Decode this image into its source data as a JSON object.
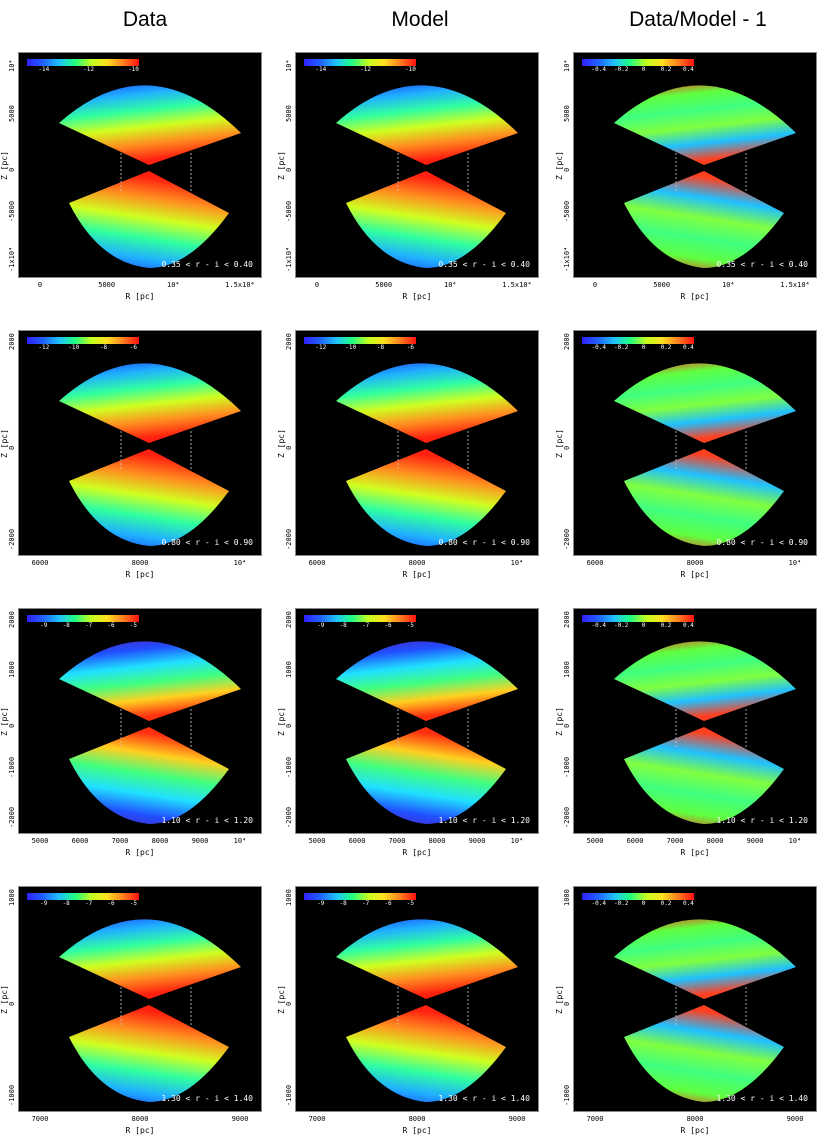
{
  "column_titles": [
    "Data",
    "Model",
    "Data/Model - 1"
  ],
  "axis_labels": {
    "x": "R [pc]",
    "y": "Z [pc]"
  },
  "rows": [
    {
      "range_label": "0.35 < r - i < 0.40",
      "xticks": [
        "0",
        "5000",
        "10⁴",
        "1.5x10⁴"
      ],
      "yticks": [
        "10⁴",
        "5000",
        "0",
        "-5000",
        "-1x10⁴"
      ],
      "cbar_ticks": {
        "data": [
          "-14",
          "-12",
          "-10"
        ],
        "model": [
          "-14",
          "-12",
          "-10"
        ],
        "residual": [
          "-0.4",
          "-0.2",
          "0",
          "0.2",
          "0.4"
        ]
      }
    },
    {
      "range_label": "0.80 < r - i < 0.90",
      "xticks": [
        "6000",
        "8000",
        "10⁴"
      ],
      "yticks": [
        "2000",
        "0",
        "-2000"
      ],
      "cbar_ticks": {
        "data": [
          "-12",
          "-10",
          "-8",
          "-6"
        ],
        "model": [
          "-12",
          "-10",
          "-8",
          "-6"
        ],
        "residual": [
          "-0.4",
          "-0.2",
          "0",
          "0.2",
          "0.4"
        ]
      }
    },
    {
      "range_label": "1.10 < r - i < 1.20",
      "xticks": [
        "5000",
        "6000",
        "7000",
        "8000",
        "9000",
        "10⁴"
      ],
      "yticks": [
        "2000",
        "1000",
        "0",
        "-1000",
        "-2000"
      ],
      "cbar_ticks": {
        "data": [
          "-9",
          "-8",
          "-7",
          "-6",
          "-5"
        ],
        "model": [
          "-9",
          "-8",
          "-7",
          "-6",
          "-5"
        ],
        "residual": [
          "-0.4",
          "-0.2",
          "0",
          "0.2",
          "0.4"
        ]
      }
    },
    {
      "range_label": "1.30 < r - i < 1.40",
      "xticks": [
        "7000",
        "8000",
        "9000"
      ],
      "yticks": [
        "1000",
        "0",
        "-1000"
      ],
      "cbar_ticks": {
        "data": [
          "-9",
          "-8",
          "-7",
          "-6",
          "-5"
        ],
        "model": [
          "-9",
          "-8",
          "-7",
          "-6",
          "-5"
        ],
        "residual": [
          "-0.4",
          "-0.2",
          "0",
          "0.2",
          "0.4"
        ]
      }
    }
  ],
  "colors": {
    "background": "#000000",
    "accent_low": "#3020ff",
    "accent_high": "#ff1010"
  }
}
